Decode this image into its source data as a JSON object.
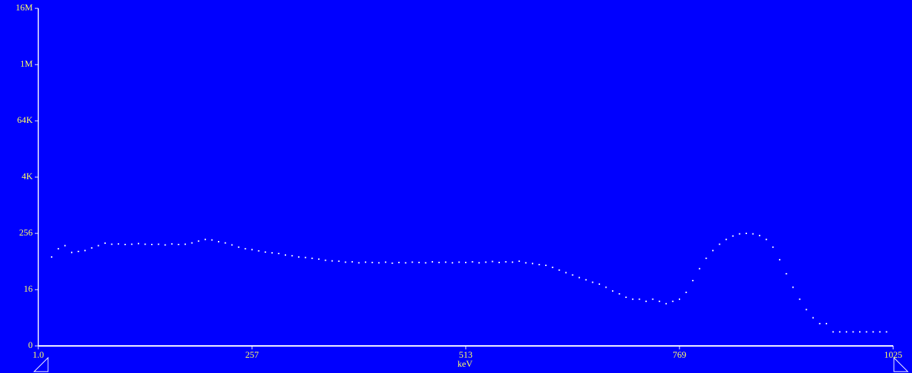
{
  "chart_data": {
    "type": "scatter",
    "xlabel": "keV",
    "xlim": [
      1,
      1025
    ],
    "xticks": [
      {
        "value": 1,
        "label": "1.0"
      },
      257,
      513,
      769,
      1025
    ],
    "ylim": [
      1,
      16777216
    ],
    "yticks": [
      {
        "value": 1,
        "label": "0"
      },
      16,
      256,
      {
        "value": 4096,
        "label": "4K"
      },
      {
        "value": 65536,
        "label": "64K"
      },
      {
        "value": 1048576,
        "label": "1M"
      },
      {
        "value": 16777216,
        "label": "16M"
      }
    ],
    "log_y": true,
    "color": "#ffffff",
    "x": [
      17,
      25,
      33,
      41,
      49,
      57,
      65,
      73,
      81,
      89,
      97,
      105,
      113,
      121,
      129,
      137,
      145,
      153,
      161,
      169,
      177,
      185,
      193,
      201,
      209,
      217,
      225,
      233,
      241,
      249,
      257,
      265,
      273,
      281,
      289,
      297,
      305,
      313,
      321,
      329,
      337,
      345,
      353,
      361,
      369,
      377,
      385,
      393,
      401,
      409,
      417,
      425,
      433,
      441,
      449,
      457,
      465,
      473,
      481,
      489,
      497,
      505,
      513,
      521,
      529,
      537,
      545,
      553,
      561,
      569,
      577,
      585,
      593,
      601,
      609,
      617,
      625,
      633,
      641,
      649,
      657,
      665,
      673,
      681,
      689,
      697,
      705,
      713,
      721,
      729,
      737,
      745,
      753,
      761,
      769,
      777,
      785,
      793,
      801,
      809,
      817,
      825,
      833,
      841,
      849,
      857,
      865,
      873,
      881,
      889,
      897,
      905,
      913,
      921,
      929,
      937,
      945,
      953,
      961,
      969,
      977,
      985,
      993,
      1001,
      1009,
      1017
    ],
    "values": [
      80,
      120,
      140,
      100,
      105,
      110,
      125,
      140,
      158,
      150,
      152,
      148,
      150,
      155,
      150,
      148,
      150,
      145,
      152,
      148,
      150,
      160,
      175,
      190,
      185,
      170,
      160,
      145,
      130,
      120,
      115,
      108,
      102,
      98,
      95,
      88,
      85,
      80,
      78,
      75,
      72,
      68,
      66,
      65,
      62,
      63,
      60,
      62,
      61,
      60,
      62,
      59,
      61,
      60,
      62,
      61,
      60,
      63,
      61,
      62,
      60,
      62,
      61,
      63,
      60,
      62,
      64,
      61,
      63,
      62,
      65,
      60,
      58,
      55,
      53,
      48,
      42,
      37,
      33,
      29,
      26,
      23,
      21,
      18,
      15,
      13,
      11,
      10,
      10,
      9,
      10,
      9,
      8,
      9,
      10,
      14,
      25,
      45,
      75,
      110,
      150,
      190,
      225,
      250,
      256,
      250,
      230,
      190,
      130,
      70,
      35,
      18,
      10,
      6,
      4,
      3,
      3,
      2,
      2,
      2,
      2,
      2,
      2,
      2,
      2,
      2
    ]
  }
}
